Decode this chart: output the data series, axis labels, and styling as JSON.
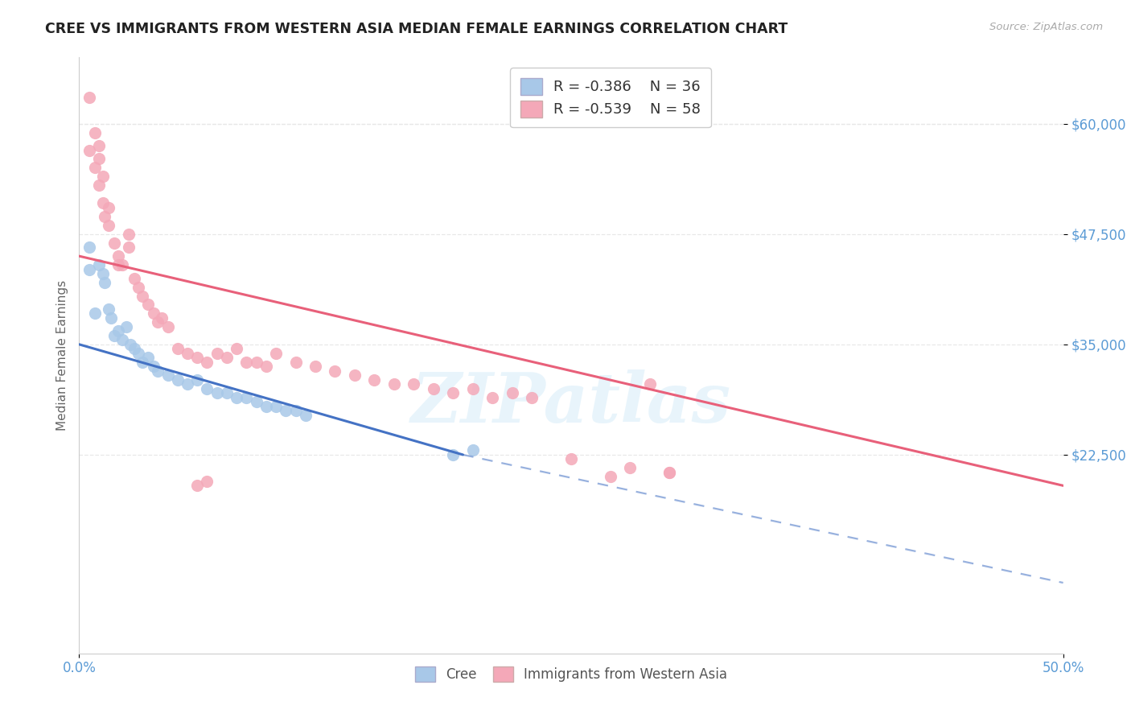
{
  "title": "CREE VS IMMIGRANTS FROM WESTERN ASIA MEDIAN FEMALE EARNINGS CORRELATION CHART",
  "source": "Source: ZipAtlas.com",
  "ylabel": "Median Female Earnings",
  "xlim": [
    0.0,
    0.5
  ],
  "ylim": [
    0,
    67500
  ],
  "yticks": [
    22500,
    35000,
    47500,
    60000
  ],
  "ytick_labels": [
    "$22,500",
    "$35,000",
    "$47,500",
    "$60,000"
  ],
  "xticks": [
    0.0,
    0.5
  ],
  "xtick_labels": [
    "0.0%",
    "50.0%"
  ],
  "legend_R_blue": "R = -0.386",
  "legend_N_blue": "N = 36",
  "legend_R_pink": "R = -0.539",
  "legend_N_pink": "N = 58",
  "blue_color": "#a8c8e8",
  "pink_color": "#f4a8b8",
  "blue_line_color": "#4472c4",
  "pink_line_color": "#e8607a",
  "blue_scatter_x": [
    0.005,
    0.01,
    0.012,
    0.013,
    0.015,
    0.016,
    0.018,
    0.02,
    0.022,
    0.024,
    0.026,
    0.028,
    0.03,
    0.032,
    0.035,
    0.038,
    0.04,
    0.045,
    0.05,
    0.055,
    0.06,
    0.065,
    0.07,
    0.075,
    0.08,
    0.085,
    0.09,
    0.095,
    0.1,
    0.105,
    0.11,
    0.115,
    0.19,
    0.2,
    0.005,
    0.008
  ],
  "blue_scatter_y": [
    46000,
    44000,
    43000,
    42000,
    39000,
    38000,
    36000,
    36500,
    35500,
    37000,
    35000,
    34500,
    34000,
    33000,
    33500,
    32500,
    32000,
    31500,
    31000,
    30500,
    31000,
    30000,
    29500,
    29500,
    29000,
    29000,
    28500,
    28000,
    28000,
    27500,
    27500,
    27000,
    22500,
    23000,
    43500,
    38500
  ],
  "pink_scatter_x": [
    0.005,
    0.005,
    0.008,
    0.01,
    0.01,
    0.012,
    0.013,
    0.015,
    0.015,
    0.018,
    0.02,
    0.02,
    0.022,
    0.025,
    0.025,
    0.028,
    0.03,
    0.032,
    0.035,
    0.038,
    0.04,
    0.042,
    0.045,
    0.05,
    0.055,
    0.06,
    0.065,
    0.07,
    0.075,
    0.08,
    0.085,
    0.09,
    0.095,
    0.1,
    0.11,
    0.12,
    0.13,
    0.14,
    0.15,
    0.16,
    0.17,
    0.18,
    0.19,
    0.2,
    0.21,
    0.22,
    0.23,
    0.27,
    0.28,
    0.3,
    0.008,
    0.01,
    0.012,
    0.06,
    0.065,
    0.29,
    0.3,
    0.25
  ],
  "pink_scatter_y": [
    63000,
    57000,
    55000,
    56000,
    53000,
    51000,
    49500,
    48500,
    50500,
    46500,
    45000,
    44000,
    44000,
    47500,
    46000,
    42500,
    41500,
    40500,
    39500,
    38500,
    37500,
    38000,
    37000,
    34500,
    34000,
    33500,
    33000,
    34000,
    33500,
    34500,
    33000,
    33000,
    32500,
    34000,
    33000,
    32500,
    32000,
    31500,
    31000,
    30500,
    30500,
    30000,
    29500,
    30000,
    29000,
    29500,
    29000,
    20000,
    21000,
    20500,
    59000,
    57500,
    54000,
    19000,
    19500,
    30500,
    20500,
    22000
  ],
  "blue_reg": [
    0.0,
    35000,
    0.195,
    22500
  ],
  "pink_reg": [
    0.0,
    45000,
    0.5,
    19000
  ],
  "blue_dash": [
    0.195,
    22500,
    0.5,
    8000
  ],
  "background_color": "#ffffff",
  "grid_color": "#e8e8e8",
  "watermark_text": "ZIPatlas",
  "title_color": "#222222",
  "ytick_color": "#5b9bd5",
  "xtick_color": "#5b9bd5"
}
